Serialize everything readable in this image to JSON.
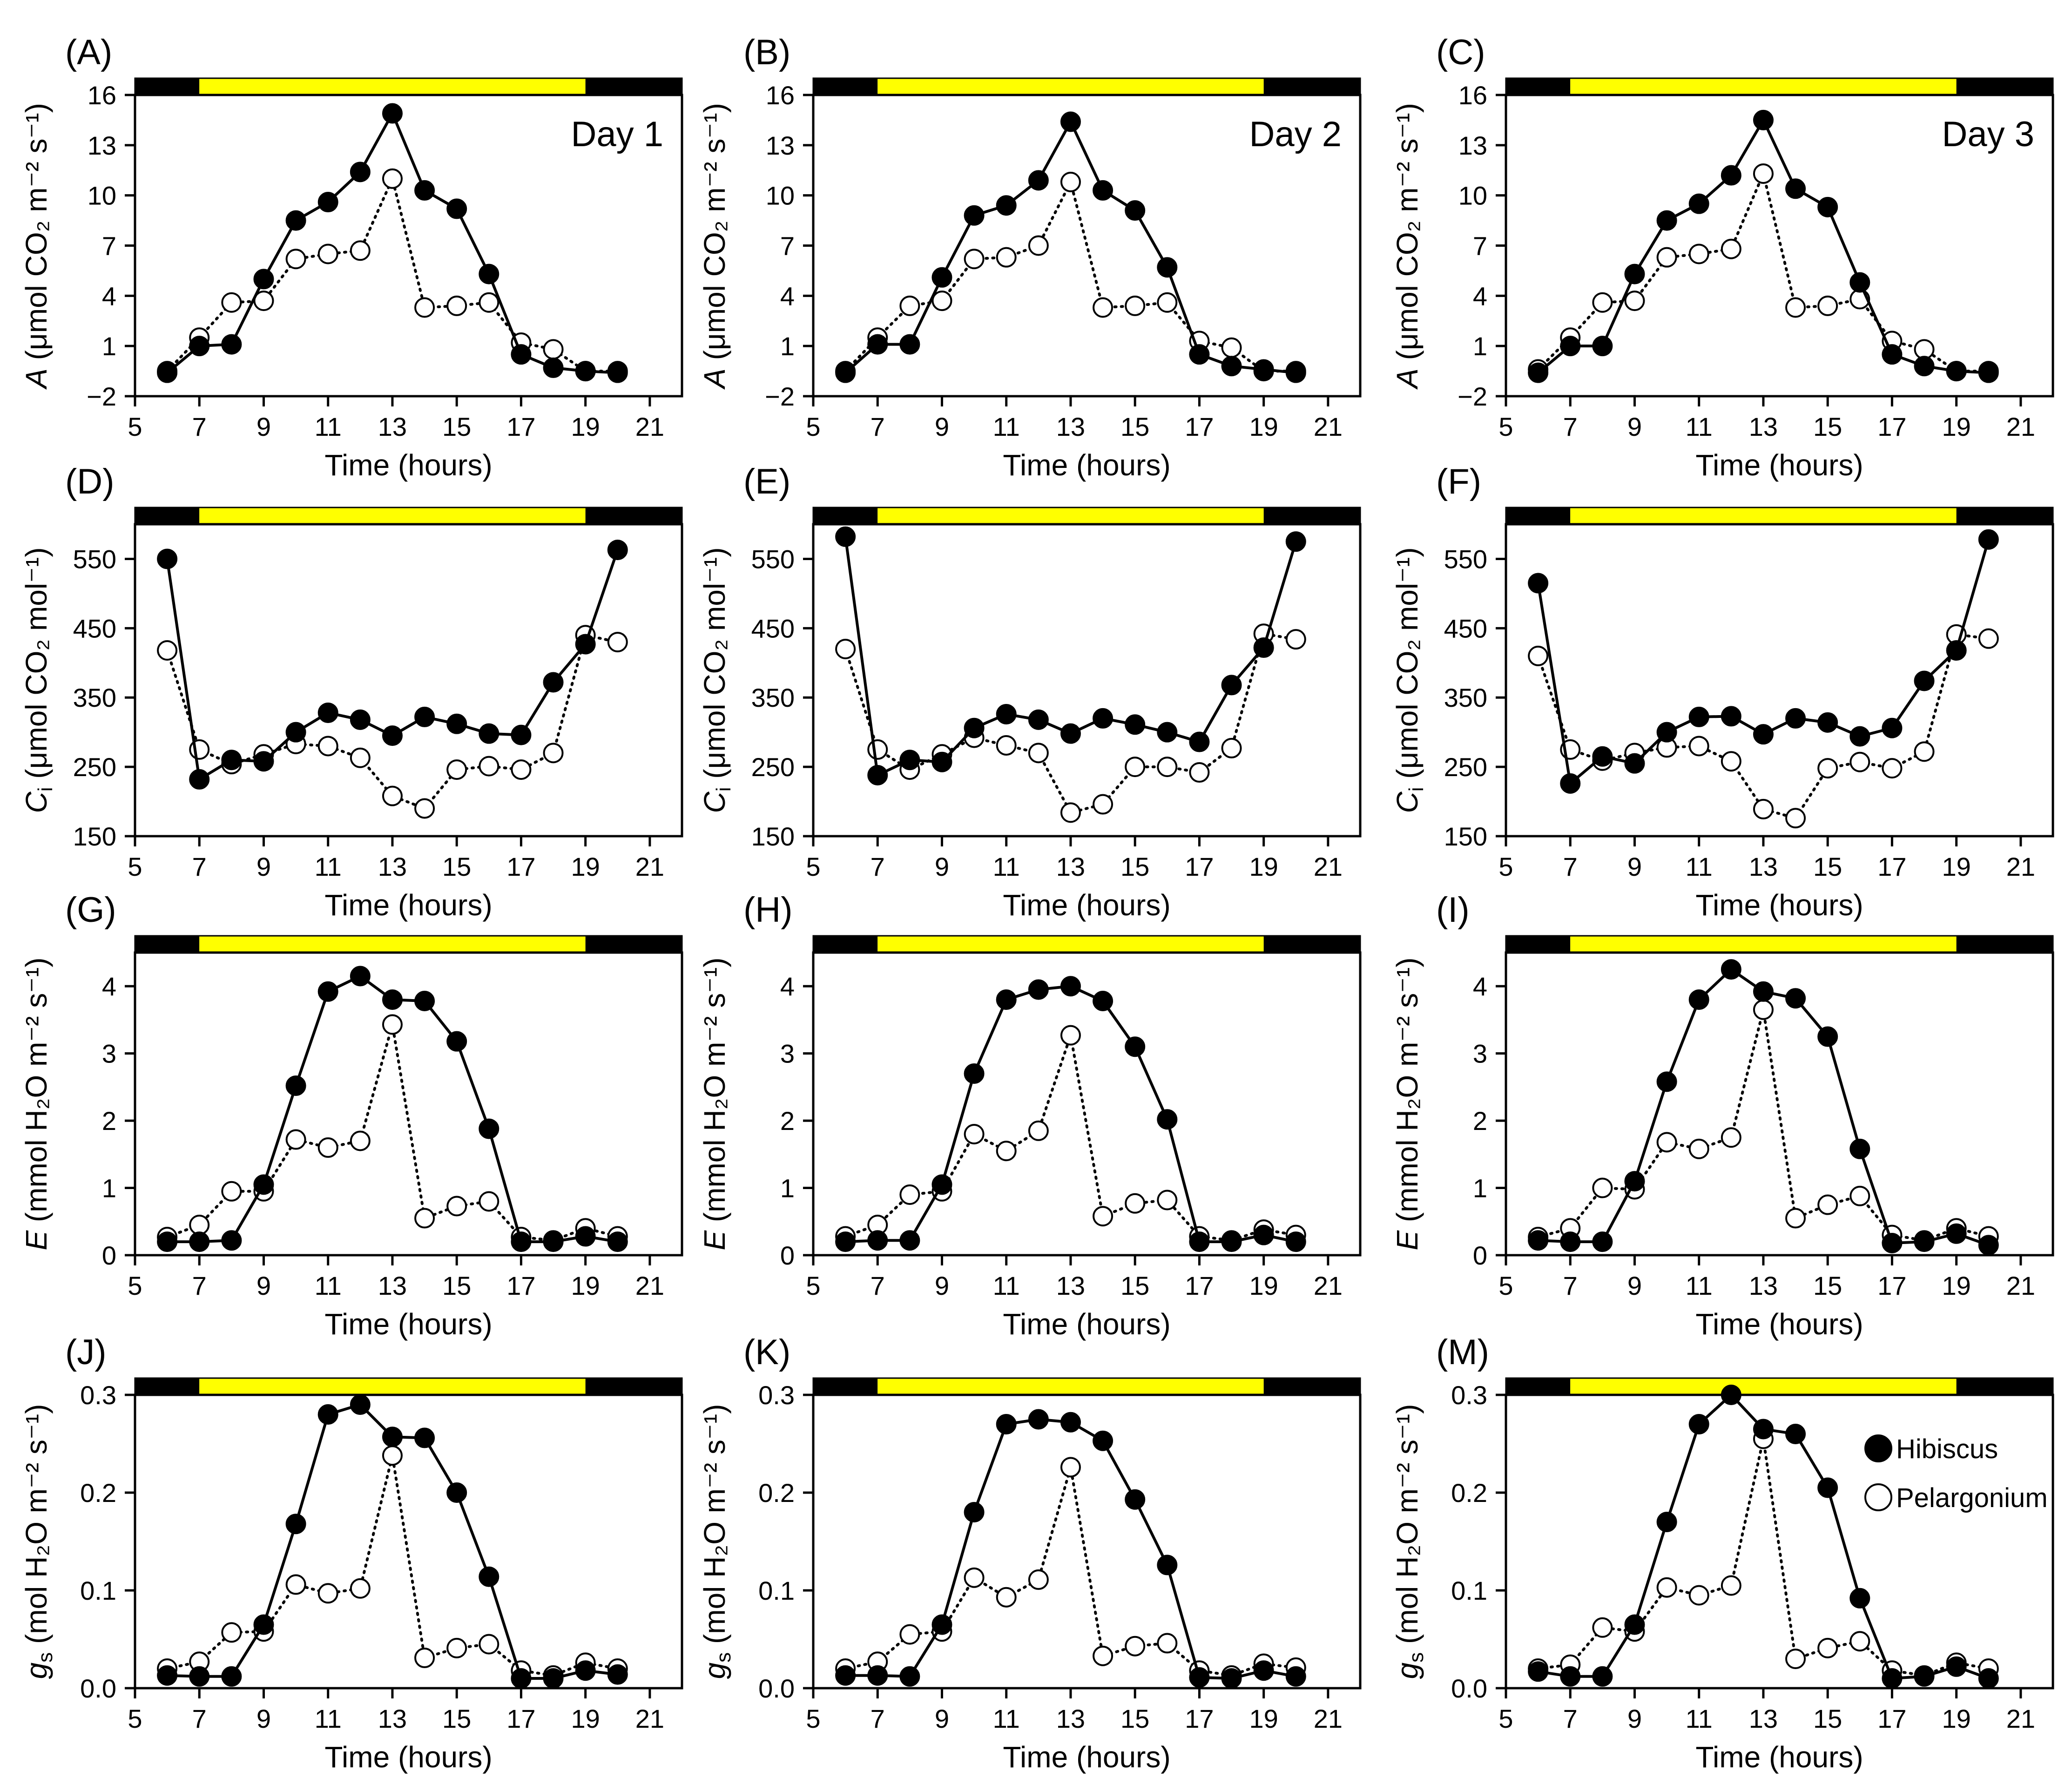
{
  "x_axis": {
    "label": "Time (hours)",
    "min": 5,
    "max": 22,
    "ticks": [
      5,
      7,
      9,
      11,
      13,
      15,
      17,
      19,
      21
    ]
  },
  "light_bar": {
    "light_start": 7,
    "light_end": 19,
    "dark_color": "#000000",
    "light_color": "#ffff00"
  },
  "series_names": [
    "Hibiscus",
    "Pelargonium"
  ],
  "legend": {
    "items": [
      "Hibiscus",
      "Pelargonium"
    ],
    "placement": "top-right of panel (M)"
  },
  "rows": [
    {
      "variable": "A",
      "y_label_symbol": "A",
      "y_label_rest": " (μmol CO₂ m⁻² s⁻¹)",
      "ylim": [
        -2,
        16
      ],
      "yticks": [
        -2,
        1,
        4,
        7,
        10,
        13,
        16
      ],
      "ytick_labels": [
        "−2",
        "1",
        "4",
        "7",
        "10",
        "13",
        "16"
      ]
    },
    {
      "variable": "Ci",
      "y_label_symbol": "C",
      "y_label_sub": "i",
      "y_label_rest": " (μmol CO₂ mol⁻¹)",
      "ylim": [
        150,
        600
      ],
      "yticks": [
        150,
        250,
        350,
        450,
        550
      ],
      "ytick_labels": [
        "150",
        "250",
        "350",
        "450",
        "550"
      ]
    },
    {
      "variable": "E",
      "y_label_symbol": "E",
      "y_label_rest": " (mmol H₂O m⁻² s⁻¹)",
      "ylim": [
        0,
        4.5
      ],
      "yticks": [
        0,
        1,
        2,
        3,
        4
      ],
      "ytick_labels": [
        "0",
        "1",
        "2",
        "3",
        "4"
      ]
    },
    {
      "variable": "gs",
      "y_label_symbol": "g",
      "y_label_sub": "s",
      "y_label_rest": " (mol H₂O m⁻² s⁻¹)",
      "ylim": [
        0,
        0.3
      ],
      "yticks": [
        0,
        0.1,
        0.2,
        0.3
      ],
      "ytick_labels": [
        "0.0",
        "0.1",
        "0.2",
        "0.3"
      ]
    }
  ],
  "chart_data": [
    {
      "panel": "(A)",
      "type": "line",
      "row": 0,
      "col": 0,
      "annotation": "Day 1",
      "series": [
        {
          "name": "Hibiscus",
          "x": [
            6,
            7,
            8,
            9,
            10,
            11,
            12,
            13,
            14,
            15,
            16,
            17,
            18,
            19,
            20
          ],
          "y": [
            -0.6,
            1.0,
            1.1,
            5.0,
            8.5,
            9.6,
            11.4,
            14.9,
            10.3,
            9.2,
            5.3,
            0.5,
            -0.3,
            -0.5,
            -0.6
          ]
        },
        {
          "name": "Pelargonium",
          "x": [
            6,
            7,
            8,
            9,
            10,
            11,
            12,
            13,
            14,
            15,
            16,
            17,
            18,
            19,
            20
          ],
          "y": [
            -0.5,
            1.5,
            3.6,
            3.7,
            6.2,
            6.5,
            6.7,
            11.0,
            3.3,
            3.4,
            3.6,
            1.2,
            0.8,
            -0.5,
            -0.5
          ]
        }
      ]
    },
    {
      "panel": "(B)",
      "type": "line",
      "row": 0,
      "col": 1,
      "annotation": "Day 2",
      "series": [
        {
          "name": "Hibiscus",
          "x": [
            6,
            7,
            8,
            9,
            10,
            11,
            12,
            13,
            14,
            15,
            16,
            17,
            18,
            19,
            20
          ],
          "y": [
            -0.6,
            1.1,
            1.1,
            5.1,
            8.8,
            9.4,
            10.9,
            14.4,
            10.3,
            9.1,
            5.7,
            0.5,
            -0.2,
            -0.4,
            -0.6
          ]
        },
        {
          "name": "Pelargonium",
          "x": [
            6,
            7,
            8,
            9,
            10,
            11,
            12,
            13,
            14,
            15,
            16,
            17,
            18,
            19,
            20
          ],
          "y": [
            -0.5,
            1.5,
            3.4,
            3.7,
            6.2,
            6.3,
            7.0,
            10.8,
            3.3,
            3.4,
            3.6,
            1.3,
            0.9,
            -0.5,
            -0.5
          ]
        }
      ]
    },
    {
      "panel": "(C)",
      "type": "line",
      "row": 0,
      "col": 2,
      "annotation": "Day 3",
      "series": [
        {
          "name": "Hibiscus",
          "x": [
            6,
            7,
            8,
            9,
            10,
            11,
            12,
            13,
            14,
            15,
            16,
            17,
            18,
            19,
            20
          ],
          "y": [
            -0.6,
            1.0,
            1.0,
            5.3,
            8.5,
            9.5,
            11.2,
            14.5,
            10.4,
            9.3,
            4.8,
            0.5,
            -0.2,
            -0.5,
            -0.6
          ]
        },
        {
          "name": "Pelargonium",
          "x": [
            6,
            7,
            8,
            9,
            10,
            11,
            12,
            13,
            14,
            15,
            16,
            17,
            18,
            19,
            20
          ],
          "y": [
            -0.4,
            1.5,
            3.6,
            3.7,
            6.3,
            6.5,
            6.8,
            11.3,
            3.3,
            3.4,
            3.8,
            1.3,
            0.8,
            -0.5,
            -0.5
          ]
        }
      ]
    },
    {
      "panel": "(D)",
      "type": "line",
      "row": 1,
      "col": 0,
      "series": [
        {
          "name": "Hibiscus",
          "x": [
            6,
            7,
            8,
            9,
            10,
            11,
            12,
            13,
            14,
            15,
            16,
            17,
            18,
            19,
            20
          ],
          "y": [
            550,
            232,
            260,
            258,
            300,
            328,
            318,
            295,
            322,
            312,
            298,
            296,
            372,
            427,
            563
          ]
        },
        {
          "name": "Pelargonium",
          "x": [
            6,
            7,
            8,
            9,
            10,
            11,
            12,
            13,
            14,
            15,
            16,
            17,
            18,
            19,
            20
          ],
          "y": [
            418,
            275,
            254,
            268,
            283,
            280,
            263,
            208,
            190,
            246,
            251,
            246,
            270,
            440,
            430
          ]
        }
      ]
    },
    {
      "panel": "(E)",
      "type": "line",
      "row": 1,
      "col": 1,
      "series": [
        {
          "name": "Hibiscus",
          "x": [
            6,
            7,
            8,
            9,
            10,
            11,
            12,
            13,
            14,
            15,
            16,
            17,
            18,
            19,
            20
          ],
          "y": [
            582,
            238,
            260,
            257,
            306,
            326,
            318,
            298,
            320,
            311,
            300,
            286,
            368,
            422,
            575
          ]
        },
        {
          "name": "Pelargonium",
          "x": [
            6,
            7,
            8,
            9,
            10,
            11,
            12,
            13,
            14,
            15,
            16,
            17,
            18,
            19,
            20
          ],
          "y": [
            420,
            275,
            246,
            268,
            292,
            281,
            270,
            184,
            196,
            250,
            250,
            242,
            277,
            442,
            434
          ]
        }
      ]
    },
    {
      "panel": "(F)",
      "type": "line",
      "row": 1,
      "col": 2,
      "series": [
        {
          "name": "Hibiscus",
          "x": [
            6,
            7,
            8,
            9,
            10,
            11,
            12,
            13,
            14,
            15,
            16,
            17,
            18,
            19,
            20
          ],
          "y": [
            515,
            226,
            265,
            255,
            300,
            322,
            323,
            297,
            320,
            314,
            294,
            306,
            374,
            418,
            578
          ]
        },
        {
          "name": "Pelargonium",
          "x": [
            6,
            7,
            8,
            9,
            10,
            11,
            12,
            13,
            14,
            15,
            16,
            17,
            18,
            19,
            20
          ],
          "y": [
            410,
            275,
            259,
            270,
            278,
            280,
            258,
            189,
            176,
            248,
            257,
            248,
            272,
            441,
            435
          ]
        }
      ]
    },
    {
      "panel": "(G)",
      "type": "line",
      "row": 2,
      "col": 0,
      "series": [
        {
          "name": "Hibiscus",
          "x": [
            6,
            7,
            8,
            9,
            10,
            11,
            12,
            13,
            14,
            15,
            16,
            17,
            18,
            19,
            20
          ],
          "y": [
            0.2,
            0.2,
            0.22,
            1.05,
            2.52,
            3.92,
            4.15,
            3.8,
            3.78,
            3.18,
            1.88,
            0.2,
            0.2,
            0.28,
            0.2
          ]
        },
        {
          "name": "Pelargonium",
          "x": [
            6,
            7,
            8,
            9,
            10,
            11,
            12,
            13,
            14,
            15,
            16,
            17,
            18,
            19,
            20
          ],
          "y": [
            0.27,
            0.45,
            0.95,
            0.95,
            1.72,
            1.6,
            1.7,
            3.43,
            0.55,
            0.73,
            0.8,
            0.27,
            0.22,
            0.4,
            0.28
          ]
        }
      ]
    },
    {
      "panel": "(H)",
      "type": "line",
      "row": 2,
      "col": 1,
      "series": [
        {
          "name": "Hibiscus",
          "x": [
            6,
            7,
            8,
            9,
            10,
            11,
            12,
            13,
            14,
            15,
            16,
            17,
            18,
            19,
            20
          ],
          "y": [
            0.2,
            0.22,
            0.22,
            1.05,
            2.7,
            3.8,
            3.95,
            4.0,
            3.78,
            3.1,
            2.02,
            0.2,
            0.2,
            0.3,
            0.2
          ]
        },
        {
          "name": "Pelargonium",
          "x": [
            6,
            7,
            8,
            9,
            10,
            11,
            12,
            13,
            14,
            15,
            16,
            17,
            18,
            19,
            20
          ],
          "y": [
            0.28,
            0.45,
            0.9,
            0.95,
            1.8,
            1.55,
            1.85,
            3.27,
            0.58,
            0.77,
            0.82,
            0.28,
            0.22,
            0.38,
            0.3
          ]
        }
      ]
    },
    {
      "panel": "(I)",
      "type": "line",
      "row": 2,
      "col": 2,
      "series": [
        {
          "name": "Hibiscus",
          "x": [
            6,
            7,
            8,
            9,
            10,
            11,
            12,
            13,
            14,
            15,
            16,
            17,
            18,
            19,
            20
          ],
          "y": [
            0.22,
            0.2,
            0.2,
            1.1,
            2.58,
            3.8,
            4.25,
            3.92,
            3.82,
            3.25,
            1.58,
            0.18,
            0.2,
            0.32,
            0.15
          ]
        },
        {
          "name": "Pelargonium",
          "x": [
            6,
            7,
            8,
            9,
            10,
            11,
            12,
            13,
            14,
            15,
            16,
            17,
            18,
            19,
            20
          ],
          "y": [
            0.27,
            0.4,
            1.0,
            0.98,
            1.68,
            1.58,
            1.75,
            3.65,
            0.55,
            0.75,
            0.88,
            0.3,
            0.22,
            0.4,
            0.28
          ]
        }
      ]
    },
    {
      "panel": "(J)",
      "type": "line",
      "row": 3,
      "col": 0,
      "series": [
        {
          "name": "Hibiscus",
          "x": [
            6,
            7,
            8,
            9,
            10,
            11,
            12,
            13,
            14,
            15,
            16,
            17,
            18,
            19,
            20
          ],
          "y": [
            0.013,
            0.012,
            0.012,
            0.065,
            0.168,
            0.28,
            0.29,
            0.257,
            0.256,
            0.2,
            0.114,
            0.01,
            0.01,
            0.018,
            0.014
          ]
        },
        {
          "name": "Pelargonium",
          "x": [
            6,
            7,
            8,
            9,
            10,
            11,
            12,
            13,
            14,
            15,
            16,
            17,
            18,
            19,
            20
          ],
          "y": [
            0.02,
            0.027,
            0.057,
            0.058,
            0.106,
            0.097,
            0.102,
            0.238,
            0.031,
            0.041,
            0.045,
            0.018,
            0.013,
            0.026,
            0.02
          ]
        }
      ]
    },
    {
      "panel": "(K)",
      "type": "line",
      "row": 3,
      "col": 1,
      "series": [
        {
          "name": "Hibiscus",
          "x": [
            6,
            7,
            8,
            9,
            10,
            11,
            12,
            13,
            14,
            15,
            16,
            17,
            18,
            19,
            20
          ],
          "y": [
            0.013,
            0.013,
            0.012,
            0.065,
            0.18,
            0.27,
            0.275,
            0.272,
            0.253,
            0.193,
            0.126,
            0.011,
            0.01,
            0.018,
            0.012
          ]
        },
        {
          "name": "Pelargonium",
          "x": [
            6,
            7,
            8,
            9,
            10,
            11,
            12,
            13,
            14,
            15,
            16,
            17,
            18,
            19,
            20
          ],
          "y": [
            0.02,
            0.027,
            0.055,
            0.058,
            0.113,
            0.093,
            0.111,
            0.226,
            0.033,
            0.043,
            0.046,
            0.018,
            0.013,
            0.025,
            0.021
          ]
        }
      ]
    },
    {
      "panel": "(M)",
      "type": "line",
      "row": 3,
      "col": 2,
      "series": [
        {
          "name": "Hibiscus",
          "x": [
            6,
            7,
            8,
            9,
            10,
            11,
            12,
            13,
            14,
            15,
            16,
            17,
            18,
            19,
            20
          ],
          "y": [
            0.017,
            0.012,
            0.012,
            0.065,
            0.17,
            0.27,
            0.3,
            0.265,
            0.26,
            0.205,
            0.092,
            0.01,
            0.012,
            0.022,
            0.01
          ]
        },
        {
          "name": "Pelargonium",
          "x": [
            6,
            7,
            8,
            9,
            10,
            11,
            12,
            13,
            14,
            15,
            16,
            17,
            18,
            19,
            20
          ],
          "y": [
            0.02,
            0.024,
            0.062,
            0.058,
            0.103,
            0.095,
            0.105,
            0.255,
            0.03,
            0.041,
            0.048,
            0.018,
            0.013,
            0.026,
            0.02
          ]
        }
      ]
    }
  ]
}
